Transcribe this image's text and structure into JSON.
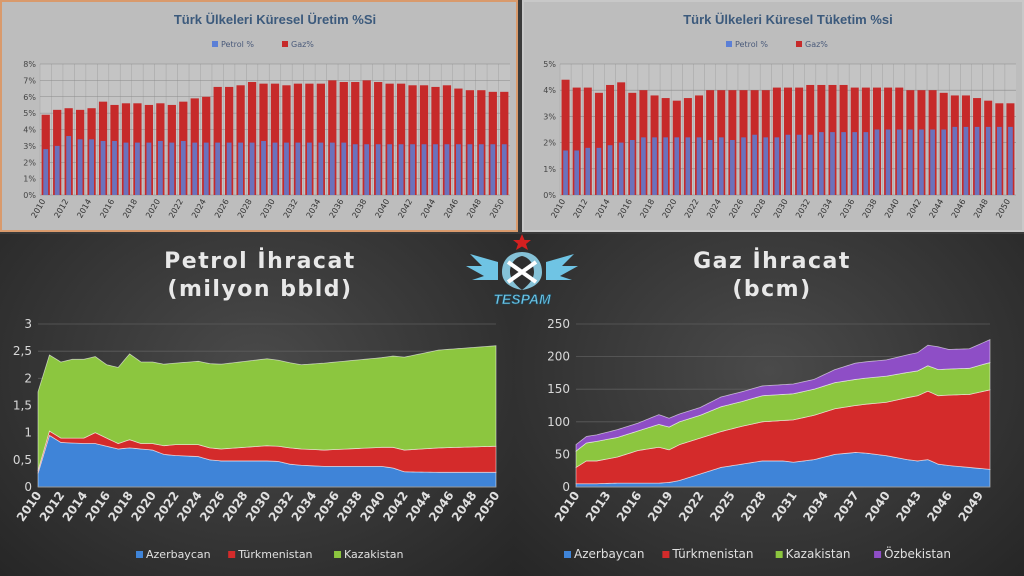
{
  "logo": {
    "text": "TESPAM"
  },
  "chart_data": [
    {
      "type": "bar",
      "title": "Türk Ülkeleri Küresel Üretim %Si",
      "legend": [
        "Petrol %",
        "Gaz%"
      ],
      "legend_position": "top",
      "x_start": 2010,
      "x_end": 2050,
      "tick_labels": [
        "2010",
        "2012",
        "2014",
        "2016",
        "2018",
        "2020",
        "2022",
        "2024",
        "2026",
        "2028",
        "2030",
        "2032",
        "2034",
        "2036",
        "2038",
        "2040",
        "2042",
        "2044",
        "2046",
        "2048",
        "2050"
      ],
      "y_ticks": [
        "0%",
        "1%",
        "2%",
        "3%",
        "4%",
        "5%",
        "6%",
        "7%",
        "8%"
      ],
      "ylim": [
        0,
        8
      ],
      "series": [
        {
          "name": "Petrol %",
          "color": "#5b7fd6",
          "values": [
            2.8,
            3.0,
            3.6,
            3.4,
            3.4,
            3.3,
            3.3,
            3.2,
            3.2,
            3.2,
            3.3,
            3.2,
            3.3,
            3.2,
            3.2,
            3.2,
            3.2,
            3.2,
            3.2,
            3.3,
            3.2,
            3.2,
            3.2,
            3.2,
            3.2,
            3.2,
            3.2,
            3.1,
            3.1,
            3.1,
            3.1,
            3.1,
            3.1,
            3.1,
            3.1,
            3.1,
            3.1,
            3.1,
            3.1,
            3.1,
            3.1
          ]
        },
        {
          "name": "Gaz%",
          "color": "#c62a2a",
          "values": [
            4.9,
            5.2,
            5.3,
            5.2,
            5.3,
            5.7,
            5.5,
            5.6,
            5.6,
            5.5,
            5.6,
            5.5,
            5.7,
            5.9,
            6.0,
            6.6,
            6.6,
            6.7,
            6.9,
            6.8,
            6.8,
            6.7,
            6.8,
            6.8,
            6.8,
            7.0,
            6.9,
            6.9,
            7.0,
            6.9,
            6.8,
            6.8,
            6.7,
            6.7,
            6.6,
            6.7,
            6.5,
            6.4,
            6.4,
            6.3,
            6.3
          ]
        }
      ]
    },
    {
      "type": "bar",
      "title": "Türk Ülkeleri Küresel Tüketim %si",
      "legend": [
        "Petrol %",
        "Gaz%"
      ],
      "legend_position": "top",
      "x_start": 2010,
      "x_end": 2050,
      "tick_labels": [
        "2010",
        "2012",
        "2014",
        "2016",
        "2018",
        "2020",
        "2022",
        "2024",
        "2026",
        "2028",
        "2030",
        "2032",
        "2034",
        "2036",
        "2038",
        "2040",
        "2042",
        "2044",
        "2046",
        "2048",
        "2050"
      ],
      "y_ticks": [
        "0%",
        "1%",
        "2%",
        "3%",
        "4%",
        "5%"
      ],
      "ylim": [
        0,
        5
      ],
      "series": [
        {
          "name": "Petrol %",
          "color": "#5b7fd6",
          "values": [
            1.7,
            1.7,
            1.8,
            1.8,
            1.9,
            2.0,
            2.1,
            2.2,
            2.2,
            2.2,
            2.2,
            2.2,
            2.2,
            2.1,
            2.2,
            2.1,
            2.2,
            2.3,
            2.2,
            2.2,
            2.3,
            2.3,
            2.3,
            2.4,
            2.4,
            2.4,
            2.4,
            2.4,
            2.5,
            2.5,
            2.5,
            2.5,
            2.5,
            2.5,
            2.5,
            2.6,
            2.6,
            2.6,
            2.6,
            2.6,
            2.6
          ]
        },
        {
          "name": "Gaz%",
          "color": "#c62a2a",
          "values": [
            4.4,
            4.1,
            4.1,
            3.9,
            4.2,
            4.3,
            3.9,
            4.0,
            3.8,
            3.7,
            3.6,
            3.7,
            3.8,
            4.0,
            4.0,
            4.0,
            4.0,
            4.0,
            4.0,
            4.1,
            4.1,
            4.1,
            4.2,
            4.2,
            4.2,
            4.2,
            4.1,
            4.1,
            4.1,
            4.1,
            4.1,
            4.0,
            4.0,
            4.0,
            3.9,
            3.8,
            3.8,
            3.7,
            3.6,
            3.5,
            3.5
          ]
        }
      ]
    },
    {
      "type": "area",
      "stacked": true,
      "title": "Petrol İhracat",
      "subtitle": "(milyon bbld)",
      "x_start": 2010,
      "x_end": 2050,
      "tick_labels": [
        "2010",
        "2012",
        "2014",
        "2016",
        "2018",
        "2020",
        "2022",
        "2024",
        "2026",
        "2028",
        "2030",
        "2032",
        "2034",
        "2036",
        "2038",
        "2040",
        "2042",
        "2044",
        "2046",
        "2048",
        "2050"
      ],
      "y_ticks": [
        "0",
        "0,5",
        "1",
        "1,5",
        "2",
        "2,5",
        "3"
      ],
      "ylim": [
        0,
        3
      ],
      "legend_position": "bottom",
      "series": [
        {
          "name": "Azerbaycan",
          "color": "#3f84d8",
          "x": [
            2010,
            2011,
            2012,
            2014,
            2015,
            2016,
            2017,
            2018,
            2020,
            2021,
            2022,
            2024,
            2025,
            2026,
            2030,
            2031,
            2032,
            2033,
            2035,
            2040,
            2041,
            2042,
            2045,
            2050
          ],
          "values": [
            0.25,
            0.95,
            0.82,
            0.8,
            0.8,
            0.75,
            0.7,
            0.72,
            0.68,
            0.6,
            0.58,
            0.56,
            0.5,
            0.48,
            0.48,
            0.47,
            0.42,
            0.4,
            0.38,
            0.38,
            0.35,
            0.28,
            0.27,
            0.27
          ]
        },
        {
          "name": "Türkmenistan",
          "color": "#d42b2b",
          "x": [
            2010,
            2011,
            2012,
            2014,
            2015,
            2016,
            2017,
            2018,
            2019,
            2020,
            2022,
            2024,
            2025,
            2026,
            2030,
            2031,
            2032,
            2033,
            2035,
            2040,
            2041,
            2042,
            2045,
            2050
          ],
          "values": [
            0.05,
            0.08,
            0.08,
            0.1,
            0.2,
            0.15,
            0.1,
            0.15,
            0.1,
            0.12,
            0.2,
            0.22,
            0.22,
            0.22,
            0.28,
            0.28,
            0.3,
            0.3,
            0.3,
            0.35,
            0.38,
            0.4,
            0.45,
            0.48
          ]
        },
        {
          "name": "Kazakistan",
          "color": "#8cc63f",
          "x": [
            2010,
            2011,
            2012,
            2013,
            2014,
            2015,
            2016,
            2017,
            2018,
            2019,
            2020,
            2021,
            2022,
            2025,
            2030,
            2033,
            2035,
            2040,
            2045,
            2050
          ],
          "values": [
            1.45,
            1.4,
            1.4,
            1.45,
            1.45,
            1.4,
            1.35,
            1.4,
            1.58,
            1.5,
            1.5,
            1.5,
            1.5,
            1.55,
            1.6,
            1.55,
            1.6,
            1.65,
            1.8,
            1.85
          ]
        }
      ]
    },
    {
      "type": "area",
      "stacked": true,
      "title": "Gaz İhracat",
      "subtitle": "(bcm)",
      "x_start": 2010,
      "x_end": 2050,
      "tick_labels": [
        "2010",
        "2013",
        "2016",
        "2019",
        "2022",
        "2025",
        "2028",
        "2031",
        "2034",
        "2037",
        "2040",
        "2043",
        "2046",
        "2049"
      ],
      "y_ticks": [
        "0",
        "50",
        "100",
        "150",
        "200",
        "250"
      ],
      "ylim": [
        0,
        250
      ],
      "legend_position": "bottom",
      "series": [
        {
          "name": "Azerbaycan",
          "color": "#3f84d8",
          "x": [
            2010,
            2012,
            2014,
            2016,
            2018,
            2019,
            2020,
            2022,
            2024,
            2026,
            2028,
            2030,
            2031,
            2033,
            2035,
            2037,
            2038,
            2040,
            2042,
            2043,
            2044,
            2045,
            2046,
            2048,
            2050
          ],
          "values": [
            5,
            5,
            6,
            6,
            6,
            7,
            10,
            20,
            30,
            35,
            40,
            40,
            38,
            42,
            50,
            53,
            52,
            48,
            42,
            40,
            42,
            35,
            33,
            30,
            27
          ]
        },
        {
          "name": "Türkmenistan",
          "color": "#d42b2b",
          "x": [
            2010,
            2011,
            2012,
            2014,
            2016,
            2018,
            2019,
            2020,
            2022,
            2024,
            2026,
            2028,
            2030,
            2031,
            2033,
            2035,
            2037,
            2038,
            2040,
            2042,
            2043,
            2044,
            2045,
            2046,
            2048,
            2050
          ],
          "values": [
            25,
            35,
            35,
            40,
            50,
            55,
            50,
            55,
            55,
            55,
            58,
            60,
            62,
            65,
            68,
            70,
            72,
            75,
            82,
            95,
            100,
            105,
            105,
            108,
            112,
            122
          ]
        },
        {
          "name": "Kazakistan",
          "color": "#8cc63f",
          "x": [
            2010,
            2012,
            2014,
            2016,
            2018,
            2020,
            2022,
            2024,
            2026,
            2028,
            2030,
            2033,
            2035,
            2037,
            2040,
            2043,
            2045,
            2046,
            2048,
            2050
          ],
          "values": [
            25,
            30,
            30,
            30,
            35,
            35,
            35,
            38,
            38,
            40,
            40,
            40,
            40,
            40,
            40,
            38,
            40,
            40,
            40,
            42
          ]
        },
        {
          "name": "Özbekistan",
          "color": "#8e4ec6",
          "x": [
            2010,
            2012,
            2014,
            2016,
            2018,
            2020,
            2022,
            2024,
            2026,
            2028,
            2030,
            2033,
            2035,
            2037,
            2040,
            2043,
            2045,
            2046,
            2048,
            2050
          ],
          "values": [
            10,
            10,
            12,
            12,
            15,
            12,
            12,
            15,
            15,
            15,
            15,
            15,
            20,
            25,
            25,
            28,
            35,
            30,
            30,
            35
          ]
        }
      ]
    }
  ]
}
